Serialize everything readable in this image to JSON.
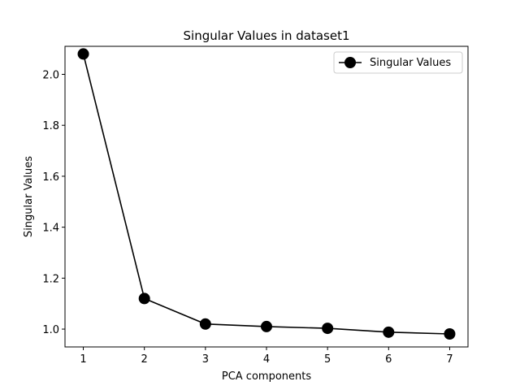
{
  "chart_data": {
    "type": "line",
    "title": "Singular Values in dataset1",
    "xlabel": "PCA components",
    "ylabel": "Singular Values",
    "xlim": [
      0.7,
      7.3
    ],
    "ylim": [
      0.93,
      2.11
    ],
    "x_ticks": [
      1,
      2,
      3,
      4,
      5,
      6,
      7
    ],
    "y_ticks": [
      1.0,
      1.2,
      1.4,
      1.6,
      1.8,
      2.0
    ],
    "y_tick_labels": [
      "1.0",
      "1.2",
      "1.4",
      "1.6",
      "1.8",
      "2.0"
    ],
    "x_tick_labels": [
      "1",
      "2",
      "3",
      "4",
      "5",
      "6",
      "7"
    ],
    "grid": false,
    "legend_position": "top-right",
    "series": [
      {
        "name": "Singular Values",
        "color": "#000000",
        "marker": "circle",
        "x": [
          1,
          2,
          3,
          4,
          5,
          6,
          7
        ],
        "values": [
          2.08,
          1.12,
          1.02,
          1.01,
          1.003,
          0.988,
          0.981
        ]
      }
    ]
  }
}
